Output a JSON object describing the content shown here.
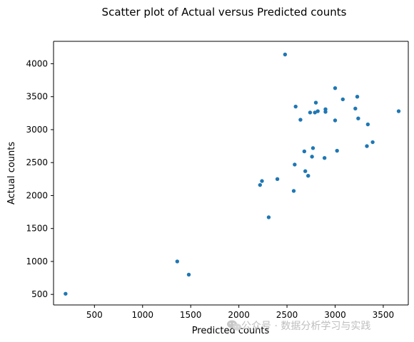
{
  "chart_data": {
    "type": "scatter",
    "title": "Scatter plot of Actual versus Predicted counts",
    "xlabel": "Predicted counts",
    "ylabel": "Actual counts",
    "xlim": [
      75,
      3760
    ],
    "ylim": [
      340,
      4340
    ],
    "xticks": [
      500,
      1000,
      1500,
      2000,
      2500,
      3000,
      3500
    ],
    "yticks": [
      500,
      1000,
      1500,
      2000,
      2500,
      3000,
      3500,
      4000
    ],
    "grid": false,
    "series": [
      {
        "color": "#1f77b4",
        "points": [
          {
            "x": 200,
            "y": 510
          },
          {
            "x": 1360,
            "y": 1000
          },
          {
            "x": 1480,
            "y": 800
          },
          {
            "x": 2220,
            "y": 2160
          },
          {
            "x": 2240,
            "y": 2220
          },
          {
            "x": 2310,
            "y": 1670
          },
          {
            "x": 2400,
            "y": 2250
          },
          {
            "x": 2480,
            "y": 4140
          },
          {
            "x": 2570,
            "y": 2070
          },
          {
            "x": 2580,
            "y": 2470
          },
          {
            "x": 2590,
            "y": 3350
          },
          {
            "x": 2640,
            "y": 3150
          },
          {
            "x": 2680,
            "y": 2670
          },
          {
            "x": 2690,
            "y": 2370
          },
          {
            "x": 2720,
            "y": 2300
          },
          {
            "x": 2740,
            "y": 3260
          },
          {
            "x": 2760,
            "y": 2590
          },
          {
            "x": 2770,
            "y": 2720
          },
          {
            "x": 2790,
            "y": 3260
          },
          {
            "x": 2800,
            "y": 3410
          },
          {
            "x": 2820,
            "y": 3280
          },
          {
            "x": 2890,
            "y": 2570
          },
          {
            "x": 2900,
            "y": 3270
          },
          {
            "x": 2900,
            "y": 3310
          },
          {
            "x": 3000,
            "y": 3140
          },
          {
            "x": 3000,
            "y": 3630
          },
          {
            "x": 3020,
            "y": 2680
          },
          {
            "x": 3080,
            "y": 3460
          },
          {
            "x": 3210,
            "y": 3320
          },
          {
            "x": 3230,
            "y": 3500
          },
          {
            "x": 3240,
            "y": 3170
          },
          {
            "x": 3330,
            "y": 2750
          },
          {
            "x": 3340,
            "y": 3080
          },
          {
            "x": 3390,
            "y": 2810
          },
          {
            "x": 3660,
            "y": 3280
          }
        ]
      }
    ]
  },
  "watermark": {
    "text": "公众号 · 数据分析学习与实践"
  },
  "icons": {
    "watermark_icon": "wechat-icon"
  }
}
